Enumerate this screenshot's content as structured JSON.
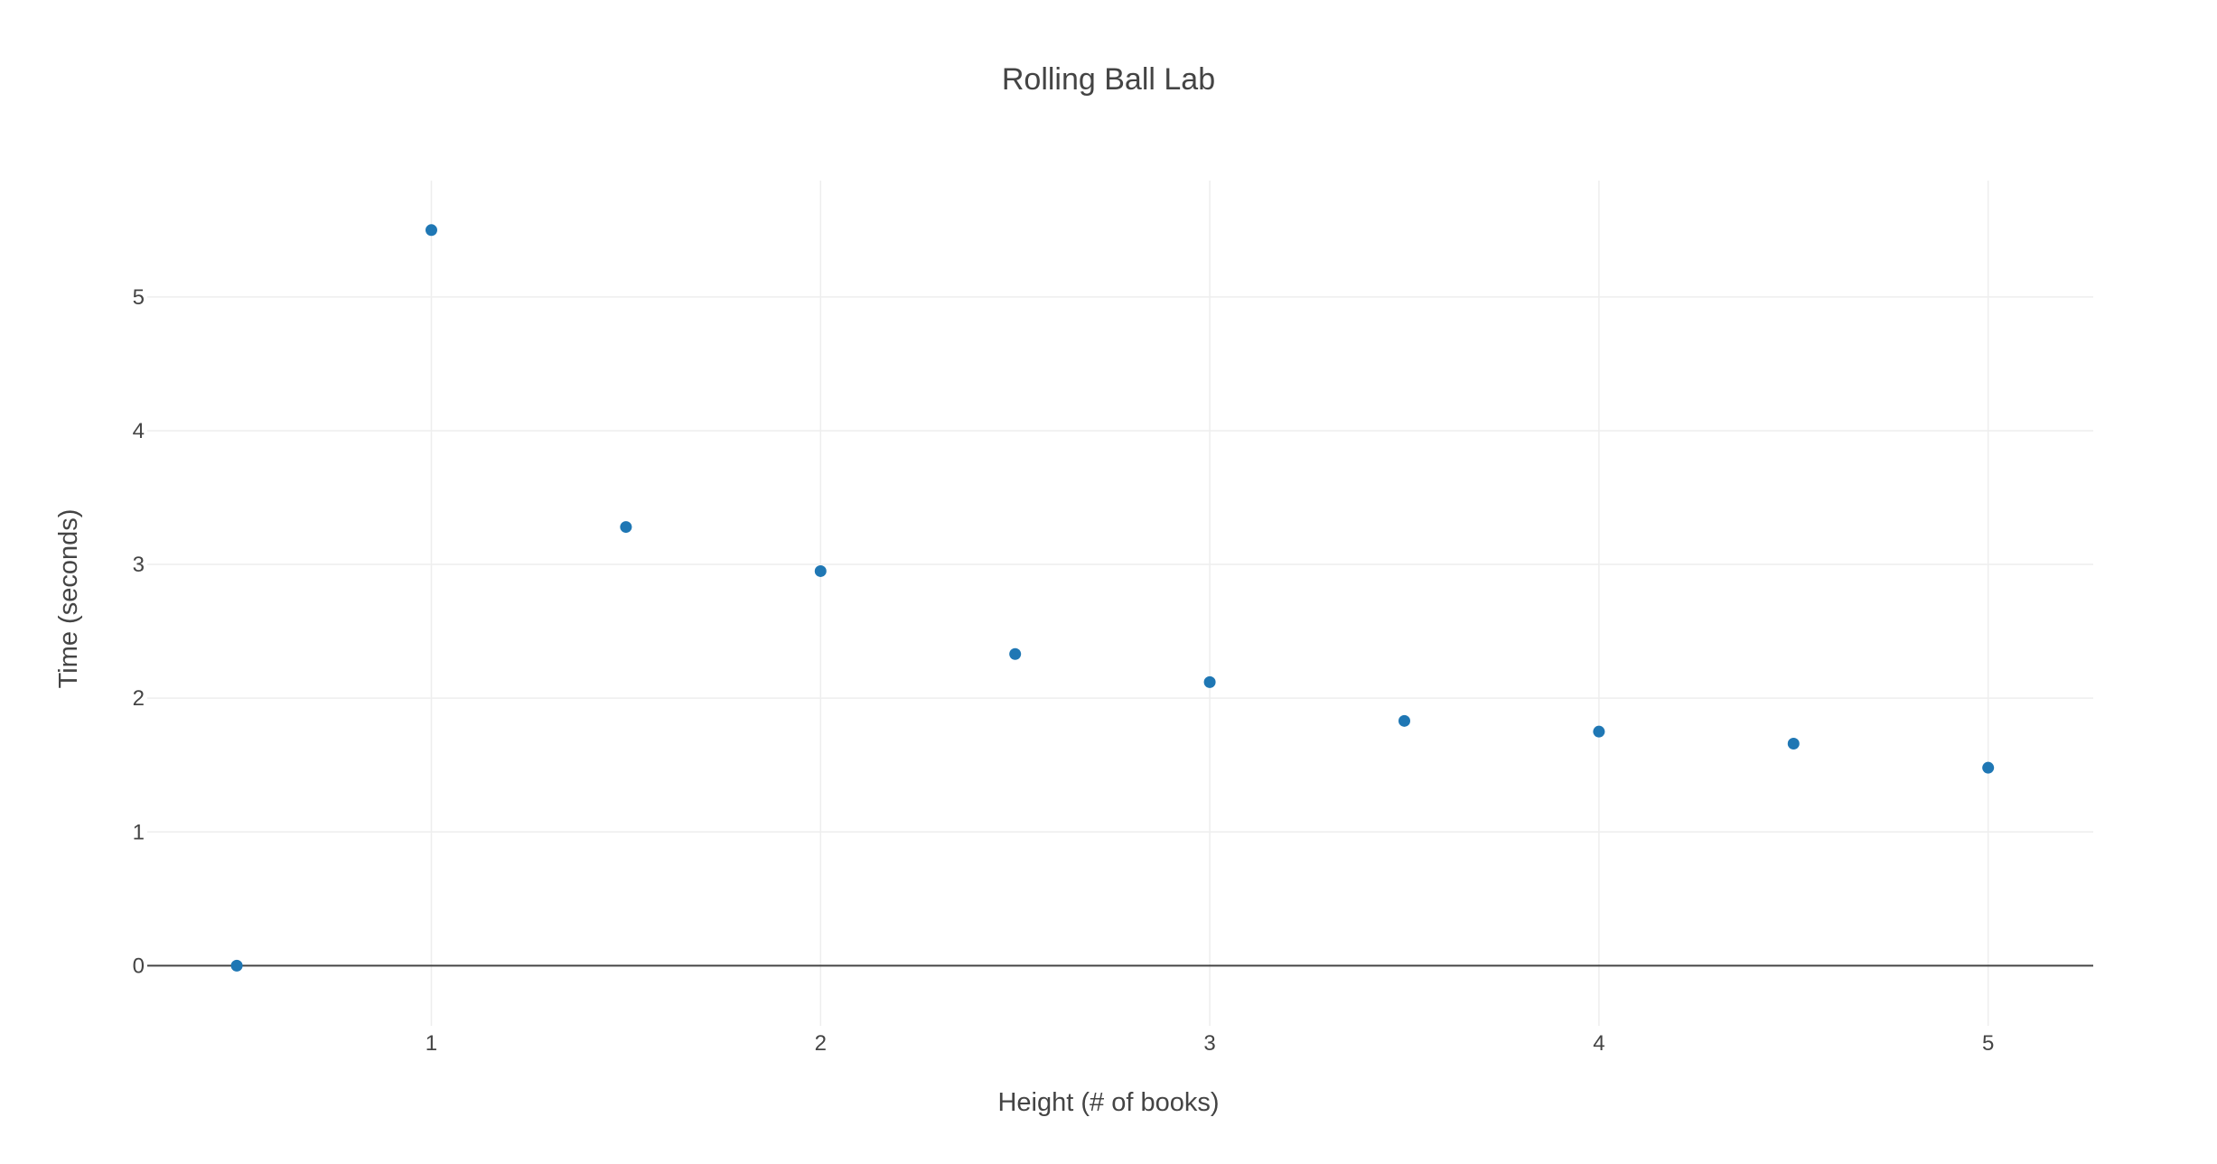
{
  "chart_data": {
    "type": "scatter",
    "title": "Rolling Ball Lab",
    "xlabel": "Height (# of books)",
    "ylabel": "Time (seconds)",
    "xlim": [
      0.27,
      5.27
    ],
    "ylim": [
      -0.45,
      5.87
    ],
    "xticks": [
      1,
      2,
      3,
      4,
      5
    ],
    "yticks": [
      0,
      1,
      2,
      3,
      4,
      5
    ],
    "grid": true,
    "marker_color": "#1f77b4",
    "series": [
      {
        "name": "trace 0",
        "x": [
          0.5,
          1,
          1.5,
          2,
          2.5,
          3,
          3.5,
          4,
          4.5,
          5
        ],
        "y": [
          0,
          5.5,
          3.28,
          2.95,
          2.33,
          2.12,
          1.83,
          1.75,
          1.66,
          1.48
        ]
      }
    ]
  }
}
